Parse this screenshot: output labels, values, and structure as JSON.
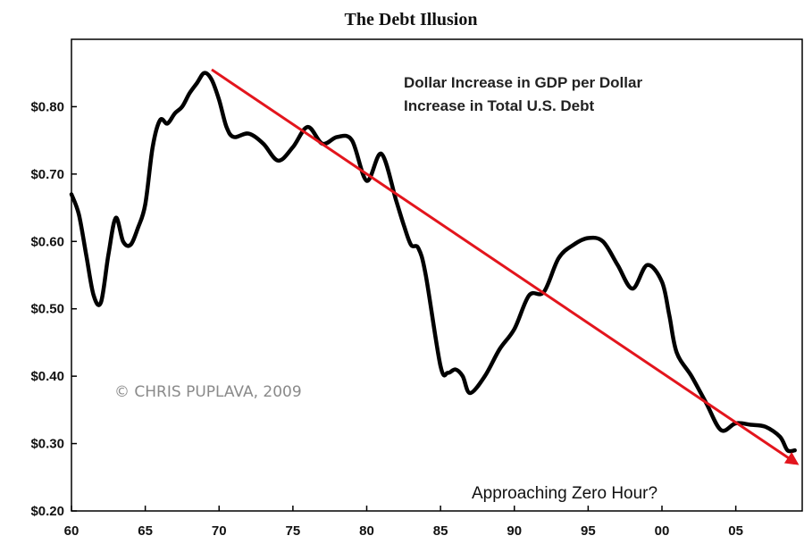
{
  "chart_data": {
    "type": "line",
    "title": "The Debt Illusion",
    "xlabel": "",
    "ylabel": "",
    "xlim": [
      1960,
      2009.5
    ],
    "ylim": [
      0.2,
      0.9
    ],
    "x_ticks": [
      1960,
      1965,
      1970,
      1975,
      1980,
      1985,
      1990,
      1995,
      2000,
      2005
    ],
    "x_tick_labels": [
      "60",
      "65",
      "70",
      "75",
      "80",
      "85",
      "90",
      "95",
      "00",
      "05"
    ],
    "y_ticks": [
      0.2,
      0.3,
      0.4,
      0.5,
      0.6,
      0.7,
      0.8
    ],
    "y_tick_labels": [
      "$0.20",
      "$0.30",
      "$0.40",
      "$0.50",
      "$0.60",
      "$0.70",
      "$0.80"
    ],
    "grid": false,
    "legend": null,
    "annotations": {
      "series_label_line1": "Dollar Increase in GDP per Dollar",
      "series_label_line2": "Increase in Total U.S. Debt",
      "copyright": "© CHRIS PUPLAVA, 2009",
      "footer": "Approaching Zero Hour?"
    },
    "series": [
      {
        "color": "#000000",
        "x": [
          1960,
          1960.5,
          1961,
          1961.5,
          1962,
          1962.5,
          1963,
          1963.5,
          1964,
          1964.5,
          1965,
          1965.5,
          1966,
          1966.5,
          1967,
          1967.5,
          1968,
          1968.5,
          1969,
          1969.5,
          1970,
          1970.5,
          1971,
          1972,
          1973,
          1974,
          1975,
          1976,
          1977,
          1978,
          1979,
          1980,
          1981,
          1982,
          1982.5,
          1983,
          1983.5,
          1984,
          1985,
          1985.5,
          1986,
          1986.5,
          1987,
          1988,
          1989,
          1990,
          1991,
          1992,
          1993,
          1994,
          1995,
          1996,
          1997,
          1998,
          1999,
          2000,
          2000.5,
          2001,
          2002,
          2003,
          2004,
          2005,
          2006,
          2007,
          2008,
          2008.5,
          2009
        ],
        "y": [
          0.67,
          0.64,
          0.58,
          0.52,
          0.51,
          0.58,
          0.635,
          0.6,
          0.595,
          0.62,
          0.655,
          0.74,
          0.78,
          0.775,
          0.79,
          0.8,
          0.82,
          0.835,
          0.85,
          0.84,
          0.81,
          0.77,
          0.755,
          0.76,
          0.745,
          0.72,
          0.74,
          0.77,
          0.745,
          0.755,
          0.75,
          0.69,
          0.73,
          0.66,
          0.625,
          0.595,
          0.59,
          0.55,
          0.415,
          0.405,
          0.41,
          0.4,
          0.375,
          0.4,
          0.44,
          0.47,
          0.52,
          0.525,
          0.575,
          0.595,
          0.605,
          0.6,
          0.565,
          0.53,
          0.565,
          0.54,
          0.49,
          0.435,
          0.4,
          0.36,
          0.32,
          0.33,
          0.328,
          0.325,
          0.31,
          0.29,
          0.29
        ]
      }
    ],
    "trend_arrow": {
      "color": "#e3151d",
      "x": [
        1969.5,
        2009.5
      ],
      "y": [
        0.855,
        0.265
      ]
    }
  }
}
